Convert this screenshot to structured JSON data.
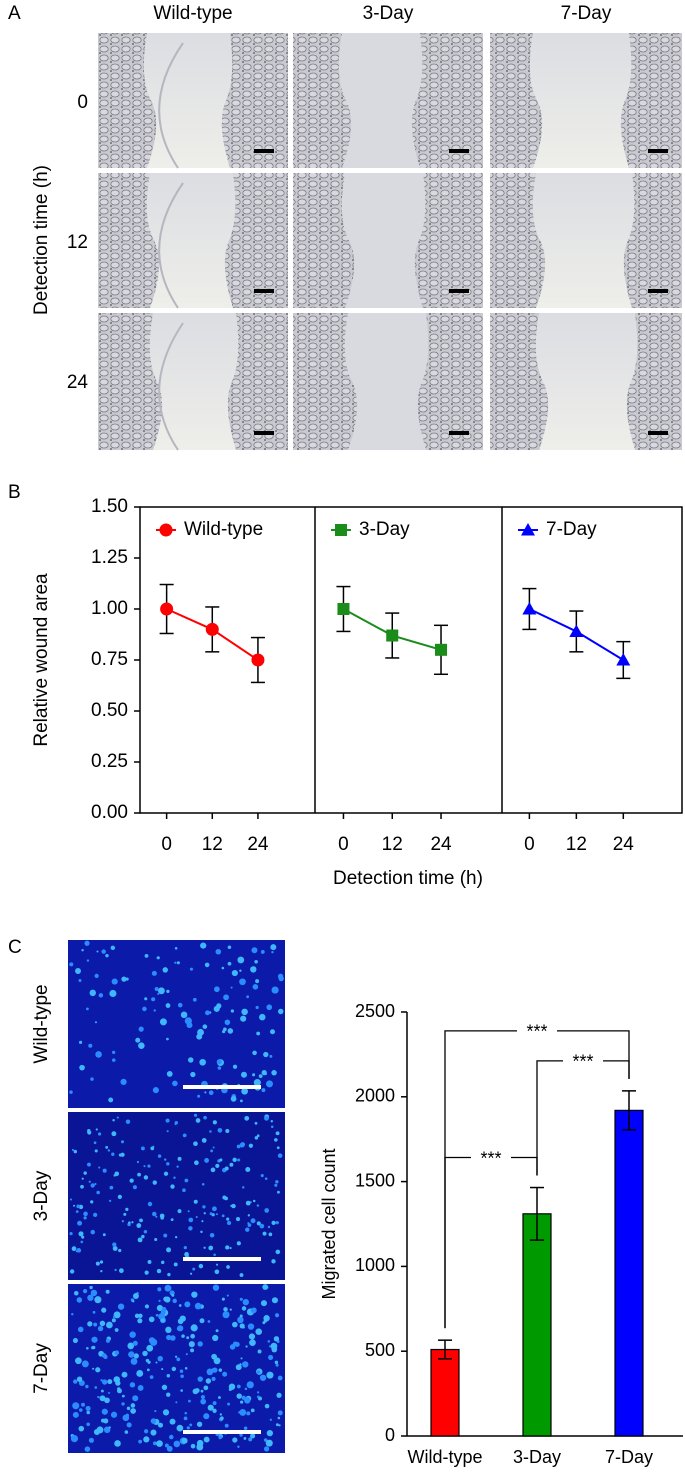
{
  "panel_labels": [
    "A",
    "B",
    "C"
  ],
  "panel_a": {
    "columns": [
      "Wild-type",
      "3-Day",
      "7-Day"
    ],
    "rows": [
      "0",
      "12",
      "24"
    ],
    "ylabel": "Detection time (h)"
  },
  "panel_c_images": {
    "rows": [
      "Wild-type",
      "3-Day",
      "7-Day"
    ]
  },
  "chart_data": [
    {
      "type": "line",
      "ylabel": "Relative wound area",
      "xlabel": "Detection time (h)",
      "ylim": [
        0,
        1.5
      ],
      "yticks": [
        {
          "value": 0,
          "label": "0.00"
        },
        0.25,
        {
          "value": 0.5,
          "label": "0.50"
        },
        0.75,
        {
          "value": 1,
          "label": "1.00"
        },
        1.25,
        {
          "value": 1.5,
          "label": "1.50"
        }
      ],
      "xlim": [
        -7,
        39
      ],
      "xticks": [
        0,
        12,
        24
      ],
      "series": [
        {
          "name": "Wild-type",
          "color": "#ff0000",
          "marker": "circle",
          "x": [
            0,
            12,
            24
          ],
          "values": [
            1.0,
            0.9,
            0.75
          ],
          "errors": [
            0.12,
            0.11,
            0.11
          ]
        },
        {
          "name": "3-Day",
          "color": "#1a8c1a",
          "marker": "square",
          "x": [
            0,
            12,
            24
          ],
          "values": [
            1.0,
            0.87,
            0.8
          ],
          "errors": [
            0.11,
            0.11,
            0.12
          ]
        },
        {
          "name": "7-Day",
          "color": "#0000ff",
          "marker": "triangle",
          "x": [
            0,
            12,
            24
          ],
          "values": [
            1.0,
            0.89,
            0.75
          ],
          "errors": [
            0.1,
            0.1,
            0.09
          ]
        }
      ]
    },
    {
      "type": "bar",
      "ylabel": "Migrated cell count",
      "categories": [
        "Wild-type",
        "3-Day",
        "7-Day"
      ],
      "values": [
        510,
        1310,
        1920
      ],
      "errors": [
        55,
        155,
        115
      ],
      "colors": [
        "#ff0000",
        "#009900",
        "#0000ff"
      ],
      "ylim": [
        0,
        2500
      ],
      "yticks": [
        0,
        500,
        1000,
        1500,
        2000,
        2500
      ],
      "annotations": [
        {
          "label": "***",
          "from": 0,
          "to": 1
        },
        {
          "label": "***",
          "from": 1,
          "to": 2
        },
        {
          "label": "***",
          "from": 0,
          "to": 2
        }
      ]
    }
  ]
}
